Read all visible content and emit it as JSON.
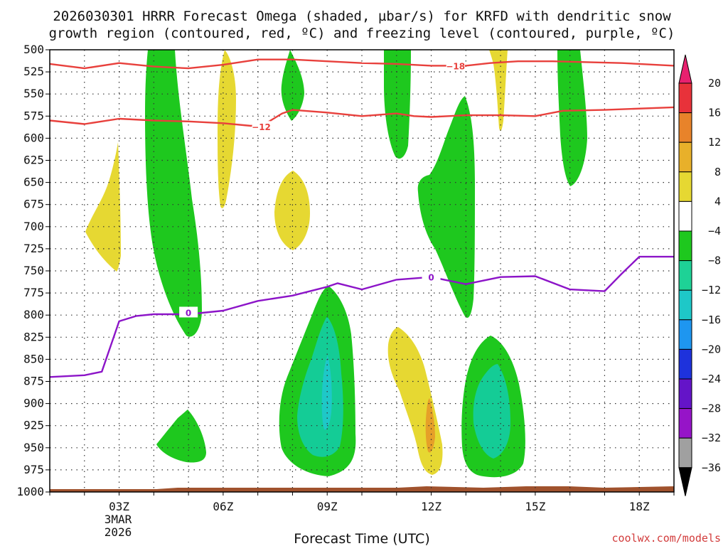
{
  "chart_data": {
    "type": "contour",
    "title_line1": "2026030301 HRRR Forecast Omega (shaded, µbar/s) for KRFD with dendritic snow",
    "title_line2": "growth region (contoured, red, ºC) and freezing level (contoured, purple, ºC)",
    "xlabel": "Forecast Time (UTC)",
    "credit": "coolwx.com/models",
    "x_ticks": [
      {
        "hour": 3,
        "label": "03Z"
      },
      {
        "hour": 6,
        "label": "06Z"
      },
      {
        "hour": 9,
        "label": "09Z"
      },
      {
        "hour": 12,
        "label": "12Z"
      },
      {
        "hour": 15,
        "label": "15Z"
      },
      {
        "hour": 18,
        "label": "18Z"
      }
    ],
    "x_date_label": [
      "3MAR",
      "2026"
    ],
    "xlim": [
      1,
      19
    ],
    "ylim": [
      1000,
      500
    ],
    "y_ticks": [
      "500",
      "525",
      "550",
      "575",
      "600",
      "625",
      "650",
      "675",
      "700",
      "725",
      "750",
      "775",
      "800",
      "825",
      "850",
      "875",
      "900",
      "925",
      "950",
      "975",
      "1000"
    ],
    "colorbar": {
      "labels": [
        "20",
        "16",
        "12",
        "8",
        "4",
        "−4",
        "−8",
        "−12",
        "−16",
        "−20",
        "−24",
        "−28",
        "−32",
        "−36"
      ],
      "bands": [
        "#e8216f",
        "#e8323a",
        "#e8832a",
        "#e8b02a",
        "#e6d832",
        "#ffffff",
        "#1ec81e",
        "#1ed296",
        "#1ec8c8",
        "#1e96f0",
        "#1e32dc",
        "#6414c8",
        "#9614c8",
        "#a0a0a0",
        "#000000"
      ]
    },
    "colors": {
      "green": "#1ec81e",
      "teal": "#14cc96",
      "cyan": "#1ec8c8",
      "yellow": "#e6d832",
      "orange": "#e6a028",
      "dgz_line": "#e8403c",
      "freezing_line": "#8c14c8",
      "ground": "#a0522d"
    },
    "dgz_lines": [
      {
        "label": "−18",
        "label_at": [
          12.7,
          518
        ],
        "points": [
          [
            1,
            516
          ],
          [
            2,
            521
          ],
          [
            3,
            515
          ],
          [
            4,
            519
          ],
          [
            5,
            521
          ],
          [
            6,
            517
          ],
          [
            7,
            511
          ],
          [
            8,
            511
          ],
          [
            9,
            513
          ],
          [
            10,
            515
          ],
          [
            11,
            516
          ],
          [
            12,
            518
          ],
          [
            13,
            518
          ],
          [
            13.7,
            515
          ],
          [
            14.5,
            513
          ],
          [
            15.5,
            513
          ],
          [
            16.5,
            514
          ],
          [
            17.5,
            515
          ],
          [
            19,
            518
          ]
        ]
      },
      {
        "label": "−12",
        "label_at": [
          7.1,
          587
        ],
        "points": [
          [
            1,
            580
          ],
          [
            2,
            584
          ],
          [
            3,
            578
          ],
          [
            4,
            580
          ],
          [
            5,
            581
          ],
          [
            6,
            583
          ],
          [
            6.8,
            586
          ],
          [
            7.2,
            584
          ],
          [
            7.7,
            572
          ],
          [
            8,
            568
          ],
          [
            9,
            571
          ],
          [
            10,
            575
          ],
          [
            11,
            572
          ],
          [
            11.5,
            575
          ],
          [
            12,
            576
          ],
          [
            13,
            574
          ],
          [
            14,
            574
          ],
          [
            15,
            575
          ],
          [
            15.8,
            569
          ],
          [
            17,
            568
          ],
          [
            19,
            565
          ]
        ]
      }
    ],
    "freezing_line": {
      "label": "0",
      "points": [
        [
          1,
          870
        ],
        [
          2,
          868
        ],
        [
          2.5,
          864
        ],
        [
          3,
          807
        ],
        [
          3.5,
          801
        ],
        [
          4,
          799
        ],
        [
          5,
          799
        ],
        [
          6,
          795
        ],
        [
          7,
          784
        ],
        [
          8,
          778
        ],
        [
          9,
          768
        ],
        [
          9.3,
          764
        ],
        [
          10,
          771
        ],
        [
          11,
          760
        ],
        [
          12,
          757
        ],
        [
          13,
          765
        ],
        [
          14,
          757
        ],
        [
          15,
          756
        ],
        [
          16,
          771
        ],
        [
          17,
          773
        ],
        [
          17.5,
          753
        ],
        [
          18,
          734
        ],
        [
          19,
          734
        ]
      ],
      "labels_at": [
        [
          5.0,
          797
        ],
        [
          12.0,
          757
        ]
      ]
    }
  }
}
